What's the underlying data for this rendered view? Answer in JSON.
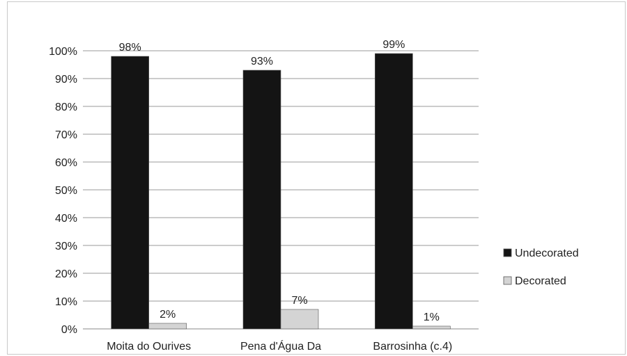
{
  "chart_data": {
    "type": "bar",
    "categories": [
      "Moita do Ourives",
      "Pena d'Água Da",
      "Barrosinha (c.4)"
    ],
    "series": [
      {
        "name": "Undecorated",
        "values": [
          98,
          93,
          99
        ],
        "labels": [
          "98%",
          "93%",
          "99%"
        ],
        "color": "#141414"
      },
      {
        "name": "Decorated",
        "values": [
          2,
          7,
          1
        ],
        "labels": [
          "2%",
          "7%",
          "1%"
        ],
        "color": "#d4d4d4"
      }
    ],
    "y_ticks": [
      {
        "value": 0,
        "label": "0%"
      },
      {
        "value": 10,
        "label": "10%"
      },
      {
        "value": 20,
        "label": "20%"
      },
      {
        "value": 30,
        "label": "30%"
      },
      {
        "value": 40,
        "label": "40%"
      },
      {
        "value": 50,
        "label": "50%"
      },
      {
        "value": 60,
        "label": "60%"
      },
      {
        "value": 70,
        "label": "70%"
      },
      {
        "value": 80,
        "label": "80%"
      },
      {
        "value": 90,
        "label": "90%"
      },
      {
        "value": 100,
        "label": "100%"
      }
    ],
    "ylim": [
      0,
      100
    ],
    "grid": true,
    "legend_position": "right",
    "title": "",
    "xlabel": "",
    "ylabel": ""
  }
}
